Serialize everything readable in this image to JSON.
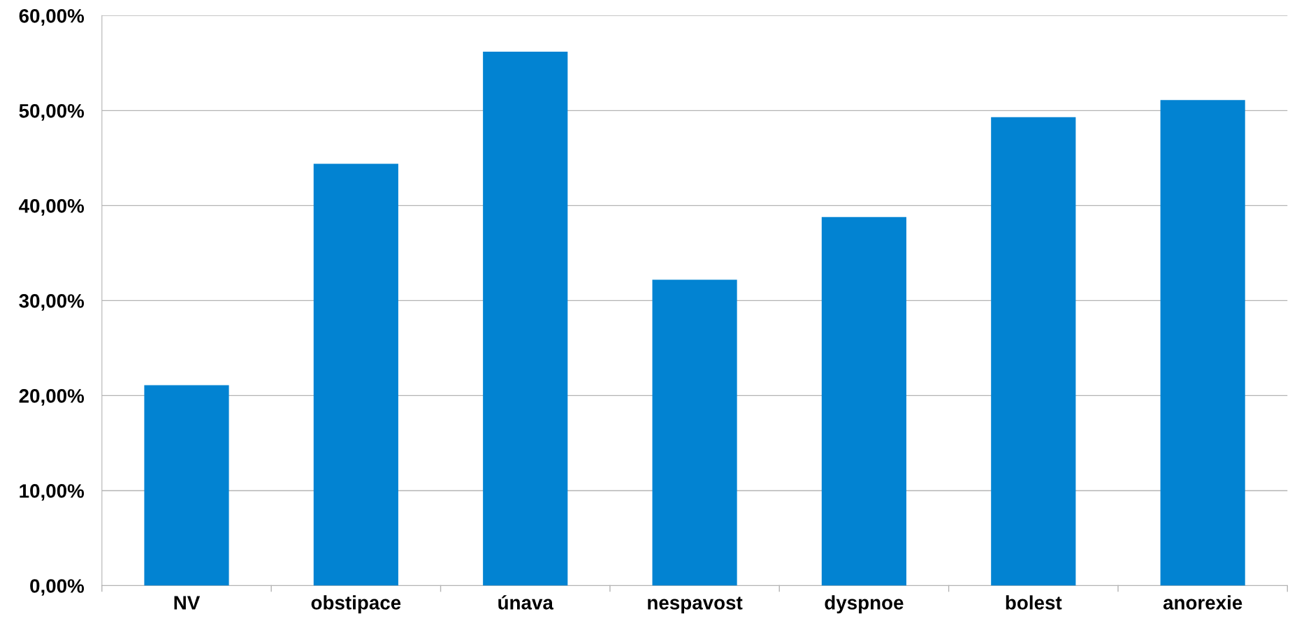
{
  "chart_data": {
    "type": "bar",
    "categories": [
      "NV",
      "obstipace",
      "únava",
      "nespavost",
      "dyspnoe",
      "bolest",
      "anorexie"
    ],
    "values": [
      21.1,
      44.4,
      56.2,
      32.2,
      38.8,
      49.3,
      51.1
    ],
    "color": "#0283d2",
    "ylim": [
      0,
      60
    ],
    "yticks": [
      {
        "value": 0,
        "label": "0,00%"
      },
      {
        "value": 10,
        "label": "10,00%"
      },
      {
        "value": 20,
        "label": "20,00%"
      },
      {
        "value": 30,
        "label": "30,00%"
      },
      {
        "value": 40,
        "label": "40,00%"
      },
      {
        "value": 50,
        "label": "50,00%"
      },
      {
        "value": 60,
        "label": "60,00%"
      }
    ],
    "grid": "y"
  }
}
